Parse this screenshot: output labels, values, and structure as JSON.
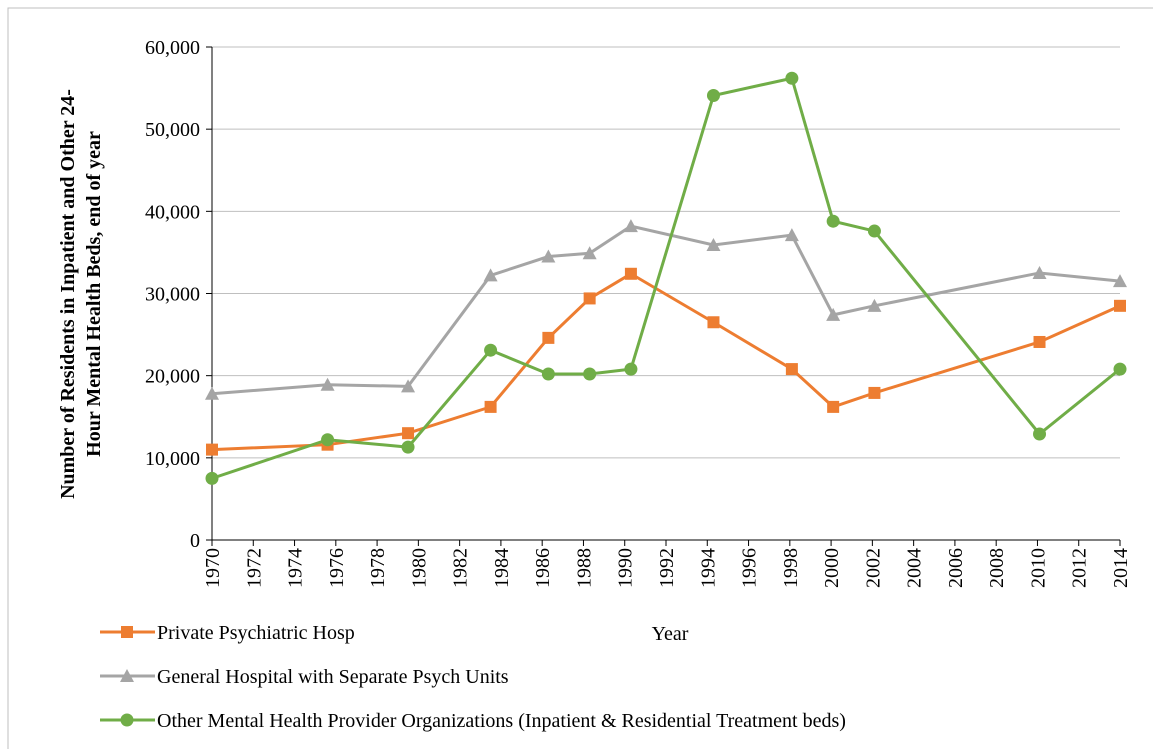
{
  "chart_data": {
    "type": "line",
    "x_label": "Year",
    "y_label": [
      "Number of Residents in Inpatient and Other 24-",
      "Hour Mental Health Beds, end of year"
    ],
    "x": [
      1970,
      1975.6,
      1979.5,
      1983.5,
      1986.3,
      1988.3,
      1990.3,
      1994.3,
      1998.1,
      2000.1,
      2002.1,
      2010.1,
      2014
    ],
    "series": [
      {
        "name": "Private Psychiatric Hosp",
        "color": "#ed7d31",
        "marker": "square",
        "values": [
          11000,
          11600,
          13000,
          16200,
          24600,
          29400,
          32400,
          26500,
          20800,
          16200,
          17900,
          24100,
          28500
        ]
      },
      {
        "name": "General Hospital with Separate Psych Units",
        "color": "#a5a5a5",
        "marker": "triangle",
        "values": [
          17800,
          18900,
          18700,
          32200,
          34500,
          34900,
          38200,
          35900,
          37100,
          27400,
          28500,
          32500,
          31500
        ]
      },
      {
        "name": "Other Mental Health Provider Organizations (Inpatient & Residential Treatment beds)",
        "color": "#70ad47",
        "marker": "circle",
        "values": [
          7500,
          12200,
          11300,
          23100,
          20200,
          20200,
          20800,
          54100,
          56200,
          38800,
          37600,
          12900,
          20800
        ]
      }
    ],
    "xlim": [
      1970,
      2014
    ],
    "xticks": [
      1970,
      1972,
      1974,
      1976,
      1978,
      1980,
      1982,
      1984,
      1986,
      1988,
      1990,
      1992,
      1994,
      1996,
      1998,
      2000,
      2002,
      2004,
      2006,
      2008,
      2010,
      2012,
      2014
    ],
    "ylim": [
      0,
      60000
    ],
    "yticks": [
      0,
      {
        "value": 10000,
        "label": "10,000"
      },
      {
        "value": 20000,
        "label": "20,000"
      },
      {
        "value": 30000,
        "label": "30,000"
      },
      {
        "value": 40000,
        "label": "40,000"
      },
      {
        "value": 50000,
        "label": "50,000"
      },
      {
        "value": 60000,
        "label": "60,000"
      }
    ],
    "grid": true,
    "legend": "bottom-left"
  }
}
